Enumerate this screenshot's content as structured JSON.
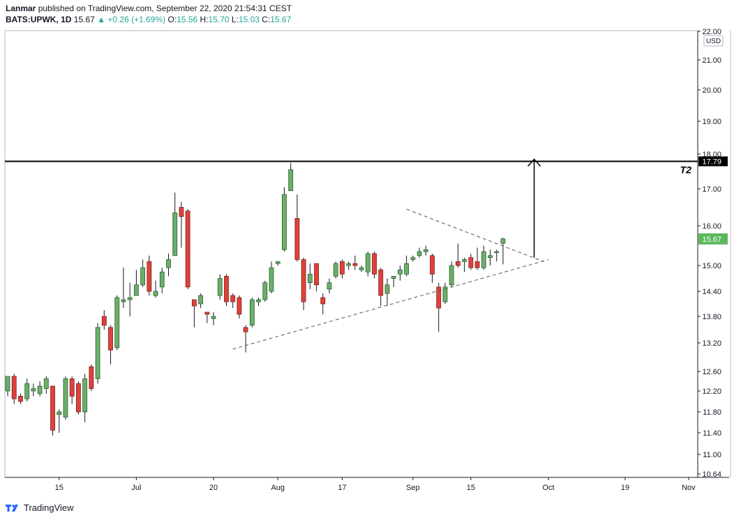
{
  "header": {
    "author": "Lanmar",
    "published_text": "published on TradingView.com, September 22, 2020 21:54:31 CEST",
    "symbol": "BATS:UPWK, 1D",
    "last": "15.67",
    "change": "+0.26 (+1.69%)",
    "o_label": "O:",
    "o_value": "15.56",
    "h_label": "H:",
    "h_value": "15.70",
    "l_label": "L:",
    "l_value": "15.03",
    "c_label": "C:",
    "c_value": "15.67"
  },
  "footer": {
    "brand": "TradingView"
  },
  "colors": {
    "up": "#6aaf6a",
    "down": "#e0413c",
    "up_border": "#2f5f2f",
    "down_border": "#7a1f1c",
    "price_tag": "#5cb85c"
  },
  "chart_data": {
    "type": "candlestick",
    "currency": "USD",
    "y_ticks": [
      "22.00",
      "21.00",
      "20.00",
      "19.00",
      "18.00",
      "17.00",
      "16.00",
      "15.00",
      "14.40",
      "13.80",
      "13.20",
      "12.60",
      "12.20",
      "11.80",
      "11.40",
      "11.00",
      "10.64"
    ],
    "x_ticks": [
      "15",
      "Jul",
      "20",
      "Aug",
      "17",
      "Sep",
      "15",
      "Oct",
      "19",
      "Nov"
    ],
    "x_tick_dates": [
      "2020-06-15",
      "2020-07-01",
      "2020-07-20",
      "2020-08-03",
      "2020-08-17",
      "2020-09-01",
      "2020-09-15",
      "2020-10-01",
      "2020-10-19",
      "2020-11-02"
    ],
    "horizontal_line": {
      "value": 17.79,
      "label": "17.79"
    },
    "target_label": "T2",
    "current_price": {
      "value": 15.67,
      "label": "15.67"
    },
    "triangle": {
      "upper": [
        [
          "2020-08-31",
          16.45
        ],
        [
          "2020-09-30",
          15.1
        ]
      ],
      "lower": [
        [
          "2020-07-23",
          13.07
        ],
        [
          "2020-10-01",
          15.15
        ]
      ]
    },
    "arrow": {
      "date": "2020-09-28",
      "from": 15.2,
      "to": 17.85
    },
    "candles": [
      [
        "2020-06-03",
        12.2,
        12.5,
        12.35,
        12.1
      ],
      [
        "2020-06-04",
        12.5,
        12.05,
        12.55,
        11.95
      ],
      [
        "2020-06-05",
        12.1,
        12.0,
        12.15,
        11.95
      ],
      [
        "2020-06-08",
        12.05,
        12.35,
        12.45,
        12.0
      ],
      [
        "2020-06-09",
        12.2,
        12.25,
        12.35,
        12.1
      ],
      [
        "2020-06-10",
        12.15,
        12.3,
        12.4,
        12.1
      ],
      [
        "2020-06-11",
        12.25,
        12.45,
        12.5,
        12.15
      ],
      [
        "2020-06-12",
        12.3,
        11.45,
        12.3,
        11.35
      ],
      [
        "2020-06-15",
        11.75,
        11.8,
        11.85,
        11.4
      ],
      [
        "2020-06-16",
        11.7,
        12.45,
        12.5,
        11.65
      ],
      [
        "2020-06-17",
        12.45,
        12.1,
        12.5,
        11.95
      ],
      [
        "2020-06-18",
        12.35,
        11.8,
        12.4,
        11.75
      ],
      [
        "2020-06-19",
        11.8,
        12.45,
        12.55,
        11.6
      ],
      [
        "2020-06-22",
        12.7,
        12.25,
        12.75,
        12.2
      ],
      [
        "2020-06-23",
        12.45,
        13.55,
        13.65,
        12.35
      ],
      [
        "2020-06-24",
        13.8,
        13.6,
        13.95,
        13.5
      ],
      [
        "2020-06-25",
        13.55,
        13.05,
        13.6,
        12.75
      ],
      [
        "2020-06-26",
        13.1,
        14.25,
        14.3,
        13.05
      ],
      [
        "2020-06-29",
        14.15,
        14.2,
        14.95,
        14.0
      ],
      [
        "2020-06-30",
        14.2,
        14.25,
        14.6,
        13.8
      ],
      [
        "2020-07-01",
        14.3,
        14.55,
        14.9,
        14.3
      ],
      [
        "2020-07-02",
        14.55,
        14.95,
        15.15,
        14.5
      ],
      [
        "2020-07-06",
        15.1,
        14.4,
        15.25,
        14.3
      ],
      [
        "2020-07-07",
        14.3,
        14.4,
        14.65,
        14.25
      ],
      [
        "2020-07-08",
        14.5,
        14.85,
        14.95,
        14.35
      ],
      [
        "2020-07-09",
        14.95,
        15.15,
        15.3,
        14.75
      ],
      [
        "2020-07-10",
        15.25,
        16.35,
        16.9,
        15.25
      ],
      [
        "2020-07-13",
        16.5,
        16.25,
        16.65,
        15.45
      ],
      [
        "2020-07-14",
        16.4,
        14.5,
        16.45,
        14.45
      ],
      [
        "2020-07-15",
        14.2,
        14.05,
        14.2,
        13.55
      ],
      [
        "2020-07-16",
        14.1,
        14.3,
        14.35,
        14.0
      ],
      [
        "2020-07-17",
        13.9,
        13.85,
        13.9,
        13.65
      ],
      [
        "2020-07-20",
        13.75,
        13.8,
        13.9,
        13.6
      ],
      [
        "2020-07-21",
        14.3,
        14.7,
        14.8,
        14.2
      ],
      [
        "2020-07-22",
        14.75,
        14.15,
        14.8,
        14.05
      ],
      [
        "2020-07-23",
        14.3,
        14.15,
        14.35,
        14.0
      ],
      [
        "2020-07-24",
        14.25,
        13.85,
        14.3,
        13.75
      ],
      [
        "2020-07-27",
        13.55,
        13.45,
        13.6,
        13.0
      ],
      [
        "2020-07-28",
        13.6,
        14.2,
        14.25,
        13.55
      ],
      [
        "2020-07-29",
        14.15,
        14.2,
        14.25,
        14.05
      ],
      [
        "2020-07-30",
        14.2,
        14.6,
        14.65,
        14.15
      ],
      [
        "2020-07-31",
        14.4,
        14.95,
        15.1,
        14.35
      ],
      [
        "2020-08-03",
        15.05,
        15.1,
        15.1,
        15.0
      ],
      [
        "2020-08-04",
        15.4,
        16.85,
        17.05,
        15.35
      ],
      [
        "2020-08-05",
        16.95,
        17.55,
        17.75,
        16.95
      ],
      [
        "2020-08-06",
        16.2,
        15.15,
        16.85,
        15.1
      ],
      [
        "2020-08-07",
        15.15,
        14.15,
        15.2,
        13.95
      ],
      [
        "2020-08-10",
        14.6,
        14.8,
        15.05,
        14.45
      ],
      [
        "2020-08-11",
        15.05,
        14.55,
        15.05,
        14.4
      ],
      [
        "2020-08-12",
        14.25,
        14.1,
        14.35,
        13.85
      ],
      [
        "2020-08-13",
        14.45,
        14.6,
        14.7,
        14.35
      ],
      [
        "2020-08-14",
        14.75,
        15.05,
        15.1,
        14.7
      ],
      [
        "2020-08-17",
        15.1,
        14.8,
        15.15,
        14.7
      ],
      [
        "2020-08-18",
        15.0,
        15.05,
        15.1,
        14.9
      ],
      [
        "2020-08-19",
        15.05,
        15.0,
        15.25,
        14.9
      ],
      [
        "2020-08-20",
        14.9,
        14.95,
        15.0,
        14.85
      ],
      [
        "2020-08-21",
        14.85,
        15.3,
        15.35,
        14.75
      ],
      [
        "2020-08-24",
        15.3,
        14.8,
        15.35,
        14.7
      ],
      [
        "2020-08-25",
        14.9,
        14.3,
        14.95,
        14.05
      ],
      [
        "2020-08-26",
        14.35,
        14.55,
        14.7,
        14.05
      ],
      [
        "2020-08-27",
        14.7,
        14.75,
        14.75,
        14.5
      ],
      [
        "2020-08-28",
        14.8,
        14.9,
        15.0,
        14.65
      ],
      [
        "2020-08-31",
        14.8,
        15.05,
        15.25,
        14.75
      ],
      [
        "2020-09-01",
        15.15,
        15.2,
        15.25,
        15.1
      ],
      [
        "2020-09-02",
        15.25,
        15.35,
        15.45,
        15.2
      ],
      [
        "2020-09-03",
        15.35,
        15.4,
        15.5,
        15.25
      ],
      [
        "2020-09-04",
        15.25,
        14.8,
        15.3,
        14.6
      ],
      [
        "2020-09-08",
        14.5,
        14.0,
        14.6,
        13.45
      ],
      [
        "2020-09-09",
        14.15,
        14.5,
        14.6,
        14.1
      ],
      [
        "2020-09-10",
        14.55,
        15.0,
        15.1,
        14.5
      ],
      [
        "2020-09-11",
        15.1,
        15.0,
        15.55,
        14.95
      ],
      [
        "2020-09-14",
        15.1,
        15.15,
        15.2,
        14.85
      ],
      [
        "2020-09-15",
        15.2,
        14.95,
        15.3,
        14.9
      ],
      [
        "2020-09-16",
        15.1,
        14.95,
        15.45,
        14.9
      ],
      [
        "2020-09-17",
        14.95,
        15.35,
        15.5,
        14.9
      ],
      [
        "2020-09-18",
        15.2,
        15.25,
        15.4,
        15.0
      ],
      [
        "2020-09-21",
        15.35,
        15.35,
        15.4,
        15.1
      ],
      [
        "2020-09-22",
        15.56,
        15.67,
        15.7,
        15.03
      ]
    ]
  }
}
